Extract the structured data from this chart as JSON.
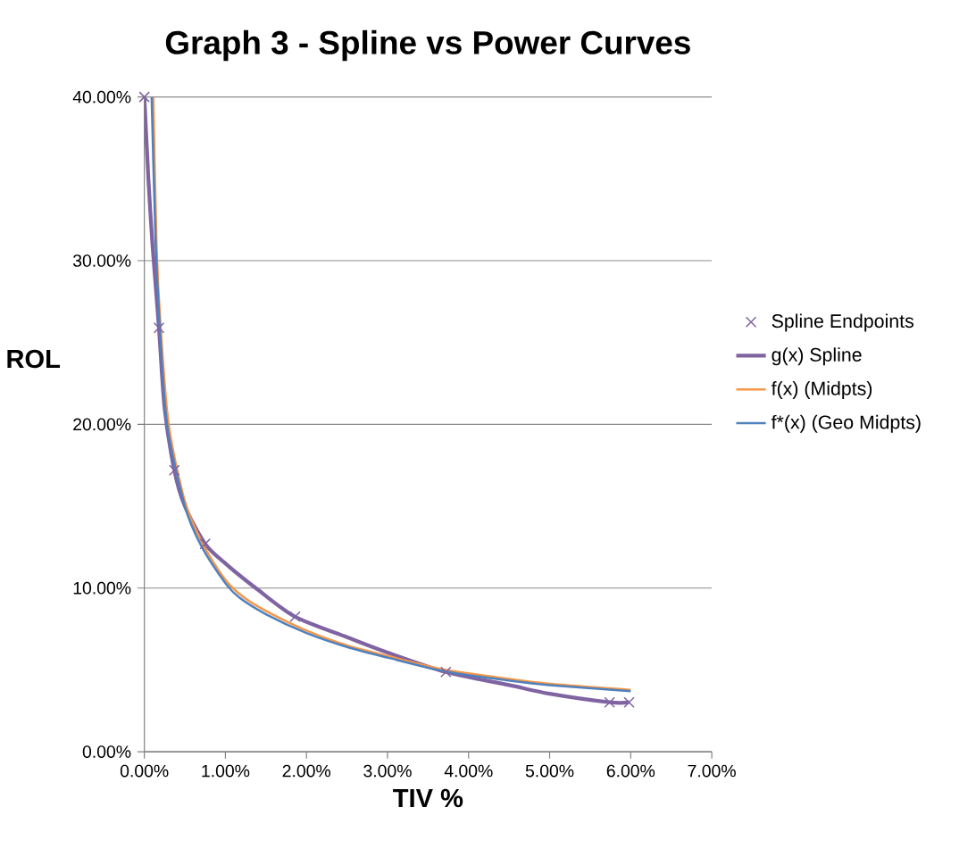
{
  "chart_data": {
    "type": "line",
    "title": "Graph 3 - Spline vs Power Curves",
    "xlabel": "TIV %",
    "ylabel": "ROL",
    "xlim": [
      0,
      7
    ],
    "ylim": [
      0,
      40
    ],
    "xticks": [
      {
        "value": 0,
        "label": "0.00%"
      },
      {
        "value": 1,
        "label": "1.00%"
      },
      {
        "value": 2,
        "label": "2.00%"
      },
      {
        "value": 3,
        "label": "3.00%"
      },
      {
        "value": 4,
        "label": "4.00%"
      },
      {
        "value": 5,
        "label": "5.00%"
      },
      {
        "value": 6,
        "label": "6.00%"
      },
      {
        "value": 7,
        "label": "7.00%"
      }
    ],
    "yticks": [
      {
        "value": 0,
        "label": "0.00%"
      },
      {
        "value": 10,
        "label": "10.00%"
      },
      {
        "value": 20,
        "label": "20.00%"
      },
      {
        "value": 30,
        "label": "30.00%"
      },
      {
        "value": 40,
        "label": "40.00%"
      }
    ],
    "grid": "y",
    "legend": "right",
    "line_style": "solid",
    "series": [
      {
        "name": "Spline Endpoints",
        "type": "scatter",
        "marker": "cross",
        "color": "#8064a2",
        "x": [
          0,
          0.18,
          0.37,
          0.75,
          1.86,
          3.72,
          5.74,
          5.98
        ],
        "values": [
          40,
          25.9,
          17.2,
          12.7,
          8.25,
          4.87,
          3.02,
          3.02
        ]
      },
      {
        "name": "g(x) Spline",
        "color": "#8064a2",
        "x": [
          0,
          0.05,
          0.1,
          0.18,
          0.25,
          0.37,
          0.5,
          0.75,
          1.0,
          1.4,
          1.86,
          2.5,
          3.0,
          3.72,
          4.5,
          5.0,
          5.74,
          5.98
        ],
        "values": [
          40,
          35,
          31,
          25.9,
          21,
          17.2,
          15,
          12.7,
          11.5,
          9.9,
          8.25,
          7.0,
          6.06,
          4.87,
          4.07,
          3.54,
          3.02,
          3.02
        ]
      },
      {
        "name": "f(x) (Midpts)",
        "color": "#f79646",
        "x": [
          0.11,
          0.15,
          0.2,
          0.3,
          0.5,
          0.72,
          1.0,
          1.23,
          1.5,
          2.0,
          2.5,
          3.0,
          3.72,
          4.5,
          5.0,
          6.0
        ],
        "values": [
          40,
          31,
          26,
          20,
          15.3,
          12.7,
          10.5,
          9.42,
          8.6,
          7.4,
          6.5,
          5.85,
          5.0,
          4.45,
          4.15,
          3.78
        ]
      },
      {
        "name": "f*(x) (Geo Midpts)",
        "color": "#4f81bd",
        "x": [
          0.09,
          0.14,
          0.19,
          0.28,
          0.5,
          0.7,
          1.0,
          1.17,
          1.5,
          2.0,
          2.5,
          3.0,
          3.72,
          4.5,
          5.0,
          6.0
        ],
        "values": [
          40,
          31,
          26,
          20,
          15.0,
          12.6,
          10.3,
          9.42,
          8.4,
          7.25,
          6.4,
          5.75,
          4.9,
          4.35,
          4.07,
          3.7
        ]
      }
    ]
  }
}
